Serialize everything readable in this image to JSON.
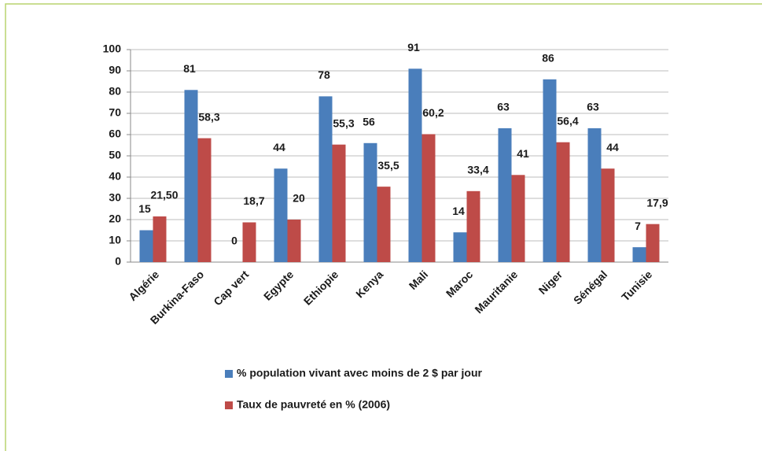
{
  "chart_data": {
    "type": "bar",
    "categories": [
      "Algérie",
      "Burkina-Faso",
      "Cap vert",
      "Egypte",
      "Ethiopie",
      "Kenya",
      "Mali",
      "Maroc",
      "Mauritanie",
      "Niger",
      "Sénégal",
      "Tunisie"
    ],
    "series": [
      {
        "name": "% population vivant avec moins de 2 $ par jour",
        "color": "#4a7ebb",
        "values": [
          15,
          81,
          0,
          44,
          78,
          56,
          91,
          14,
          63,
          86,
          63,
          7
        ]
      },
      {
        "name": "Taux de pauvreté en % (2006)",
        "color": "#be4b48",
        "values": [
          21.5,
          58.3,
          18.7,
          20,
          55.3,
          35.5,
          60.2,
          33.4,
          41,
          56.4,
          44,
          17.9
        ],
        "value_labels": [
          "21,50",
          "58,3",
          "18,7",
          "20",
          "55,3",
          "35,5",
          "60,2",
          "33,4",
          "41",
          "56,4",
          "44",
          "17,9"
        ]
      }
    ],
    "ylim": [
      0,
      100
    ],
    "yticks": [
      0,
      10,
      20,
      30,
      40,
      50,
      60,
      70,
      80,
      90,
      100
    ],
    "grid": true,
    "legend": "bottom"
  }
}
